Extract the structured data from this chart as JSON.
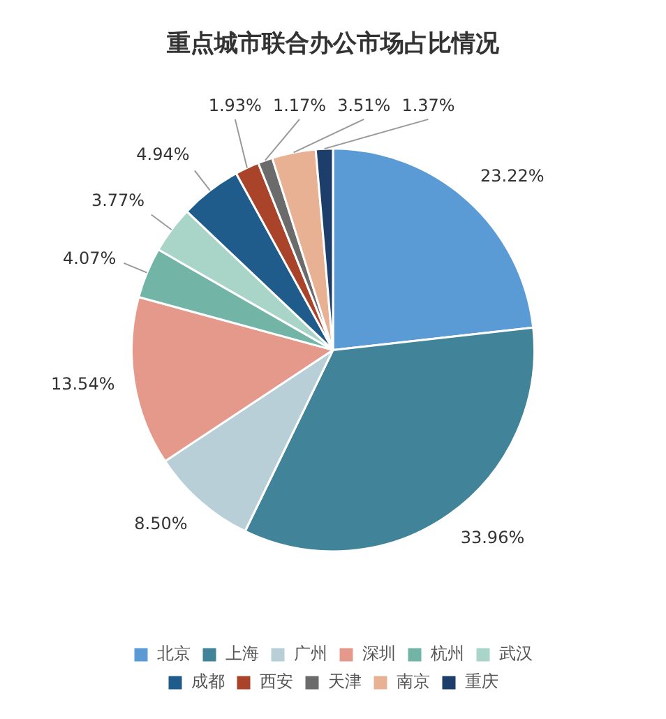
{
  "chart_data": {
    "type": "pie",
    "title": "重点城市联合办公市场占比情况",
    "categories": [
      "北京",
      "上海",
      "广州",
      "深圳",
      "杭州",
      "武汉",
      "成都",
      "西安",
      "天津",
      "南京",
      "重庆"
    ],
    "values": [
      23.22,
      33.96,
      8.5,
      13.54,
      4.07,
      3.77,
      4.94,
      1.93,
      1.17,
      3.51,
      1.37
    ],
    "value_labels": [
      "23.22%",
      "33.96%",
      "8.50%",
      "13.54%",
      "4.07%",
      "3.77%",
      "4.94%",
      "1.93%",
      "1.17%",
      "3.51%",
      "1.37%"
    ],
    "colors": [
      "#5b9bd5",
      "#41849a",
      "#b8cfd8",
      "#e5998a",
      "#72b5a6",
      "#a9d5c9",
      "#1f5c8b",
      "#a9442a",
      "#6b6b6b",
      "#e9b193",
      "#1d3e6a"
    ],
    "legend": "bottom"
  }
}
